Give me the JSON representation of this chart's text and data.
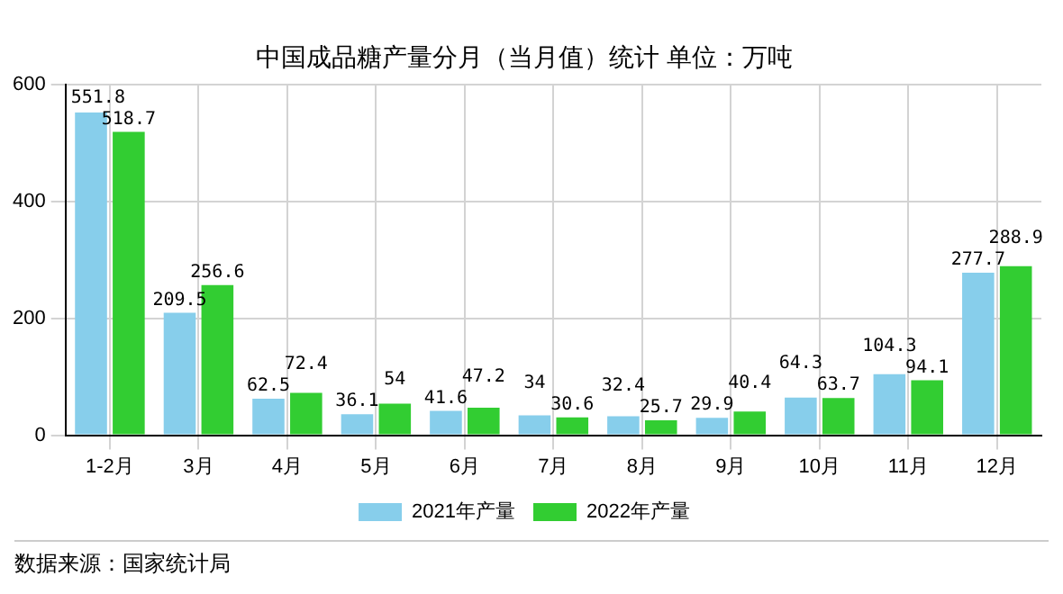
{
  "chart_data": {
    "type": "bar",
    "title": "中国成品糖产量分月（当月值）统计 单位：万吨",
    "categories": [
      "1-2月",
      "3月",
      "4月",
      "5月",
      "6月",
      "7月",
      "8月",
      "9月",
      "10月",
      "11月",
      "12月"
    ],
    "series": [
      {
        "name": "2021年产量",
        "color": "#87ceeb",
        "values": [
          551.8,
          209.5,
          62.5,
          36.1,
          41.6,
          34,
          32.4,
          29.9,
          64.3,
          104.3,
          277.7
        ]
      },
      {
        "name": "2022年产量",
        "color": "#32cd32",
        "values": [
          518.7,
          256.6,
          72.4,
          54,
          47.2,
          30.6,
          25.7,
          40.4,
          63.7,
          94.1,
          288.9
        ]
      }
    ],
    "ylim": [
      0,
      600
    ],
    "yticks": [
      0,
      200,
      400,
      600
    ],
    "grid": true,
    "legend": "bottom",
    "data_labels": true,
    "annotations": [
      "数据来源：国家统计局"
    ]
  }
}
